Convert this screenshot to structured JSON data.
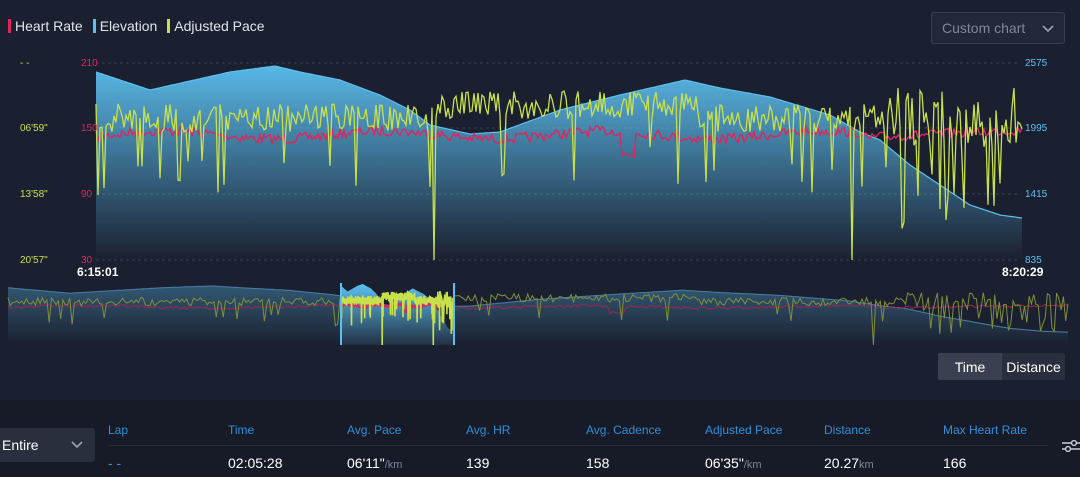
{
  "legend": [
    {
      "label": "Heart Rate",
      "color": "#e0245e"
    },
    {
      "label": "Elevation",
      "color": "#5cc0f0"
    },
    {
      "label": "Adjusted Pace",
      "color": "#c8e04a"
    }
  ],
  "custom_chart": {
    "label": "Custom chart",
    "icon": "chevron-down-icon"
  },
  "axes": {
    "pace": [
      "- -",
      "06'59\"",
      "13'58\"",
      "20'57\""
    ],
    "heart_rate": [
      "210",
      "150",
      "90",
      "30"
    ],
    "elevation": [
      "2575",
      "1995",
      "1415",
      "835"
    ]
  },
  "time_range": {
    "start": "6:15:01",
    "end": "8:20:29"
  },
  "toggle": {
    "time": "Time",
    "distance": "Distance"
  },
  "lap_select": {
    "value": "Entire",
    "icon": "chevron-down-icon"
  },
  "stats": {
    "headers": {
      "lap": "Lap",
      "time": "Time",
      "avg_pace": "Avg. Pace",
      "avg_hr": "Avg. HR",
      "avg_cadence": "Avg. Cadence",
      "adjusted_pace": "Adjusted Pace",
      "distance": "Distance",
      "max_hr": "Max Heart Rate"
    },
    "values": {
      "lap": "- -",
      "time": "02:05:28",
      "avg_pace": "06'11\"",
      "avg_pace_unit": "/km",
      "avg_hr": "139",
      "avg_cadence": "158",
      "adjusted_pace": "06'35\"",
      "adjusted_pace_unit": "/km",
      "distance": "20.27",
      "distance_unit": "km",
      "max_hr": "166"
    }
  },
  "colors": {
    "background": "#1b2030",
    "pace": "#c8e04a",
    "heart_rate": "#e0245e",
    "elevation": "#5cc0f0",
    "header_accent": "#2f8fd8"
  }
}
